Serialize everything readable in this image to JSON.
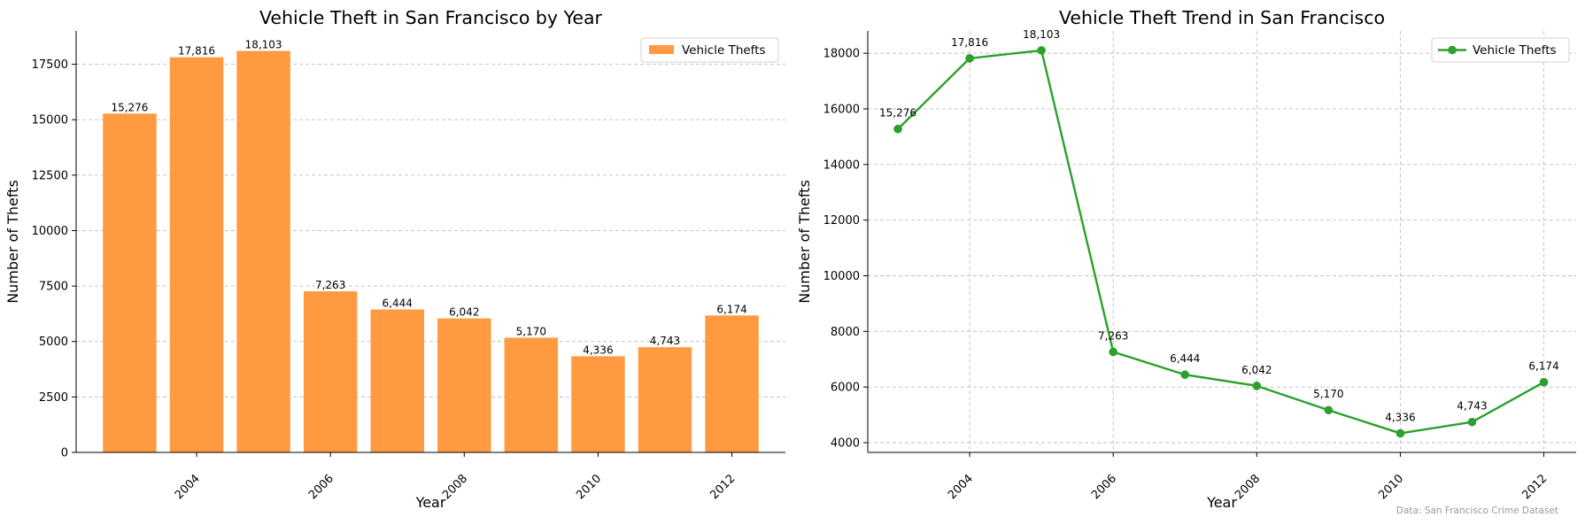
{
  "colors": {
    "bar": "#ff9a40",
    "line": "#2ca02c",
    "grid": "#bfbfbf",
    "axis": "#000000"
  },
  "source_note": "Data: San Francisco Crime Dataset",
  "chart_data": [
    {
      "type": "bar",
      "title": "Vehicle Theft in San Francisco by Year",
      "xlabel": "Year",
      "ylabel": "Number of Thefts",
      "x": [
        2003,
        2004,
        2005,
        2006,
        2007,
        2008,
        2009,
        2010,
        2011,
        2012
      ],
      "series": [
        {
          "name": "Vehicle Thefts",
          "values": [
            15276,
            17816,
            18103,
            7263,
            6444,
            6042,
            5170,
            4336,
            4743,
            6174
          ]
        }
      ],
      "data_labels": [
        "15,276",
        "17,816",
        "18,103",
        "7,263",
        "6,444",
        "6,042",
        "5,170",
        "4,336",
        "4,743",
        "6,174"
      ],
      "xticks": [
        "2004",
        "2006",
        "2008",
        "2010",
        "2012"
      ],
      "yticks": [
        "0",
        "2500",
        "5000",
        "7500",
        "10000",
        "12500",
        "15000",
        "17500"
      ],
      "ylim": [
        0,
        19000
      ],
      "xlim": [
        2002.2,
        2012.8
      ],
      "grid": "horizontal dashed",
      "legend": "top-right"
    },
    {
      "type": "line",
      "title": "Vehicle Theft Trend in San Francisco",
      "xlabel": "Year",
      "ylabel": "Number of Thefts",
      "x": [
        2003,
        2004,
        2005,
        2006,
        2007,
        2008,
        2009,
        2010,
        2011,
        2012
      ],
      "series": [
        {
          "name": "Vehicle Thefts",
          "values": [
            15276,
            17816,
            18103,
            7263,
            6444,
            6042,
            5170,
            4336,
            4743,
            6174
          ]
        }
      ],
      "data_labels": [
        "15,276",
        "17,816",
        "18,103",
        "7,263",
        "6,444",
        "6,042",
        "5,170",
        "4,336",
        "4,743",
        "6,174"
      ],
      "xticks": [
        "2004",
        "2006",
        "2008",
        "2010",
        "2012"
      ],
      "yticks": [
        "4000",
        "6000",
        "8000",
        "10000",
        "12000",
        "14000",
        "16000",
        "18000"
      ],
      "ylim": [
        3650,
        18800
      ],
      "xlim": [
        2002.58,
        2012.45
      ],
      "grid": "both dashed",
      "legend": "top-right"
    }
  ]
}
